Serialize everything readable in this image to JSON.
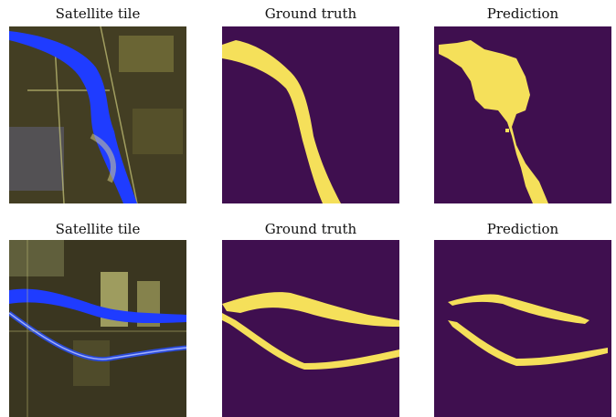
{
  "figure": {
    "rows": [
      {
        "titles": {
          "satellite": "Satellite tile",
          "ground_truth": "Ground truth",
          "prediction": "Prediction"
        }
      },
      {
        "titles": {
          "satellite": "Satellite tile",
          "ground_truth": "Ground truth",
          "prediction": "Prediction"
        }
      }
    ]
  },
  "colors": {
    "mask_background": "#3f0f4f",
    "mask_foreground": "#f5e05a",
    "water_overlay": "#1f3cff",
    "terrain_dark": "#2e2a1a",
    "terrain_mid": "#5a5a2e",
    "terrain_light": "#c9c77a"
  }
}
